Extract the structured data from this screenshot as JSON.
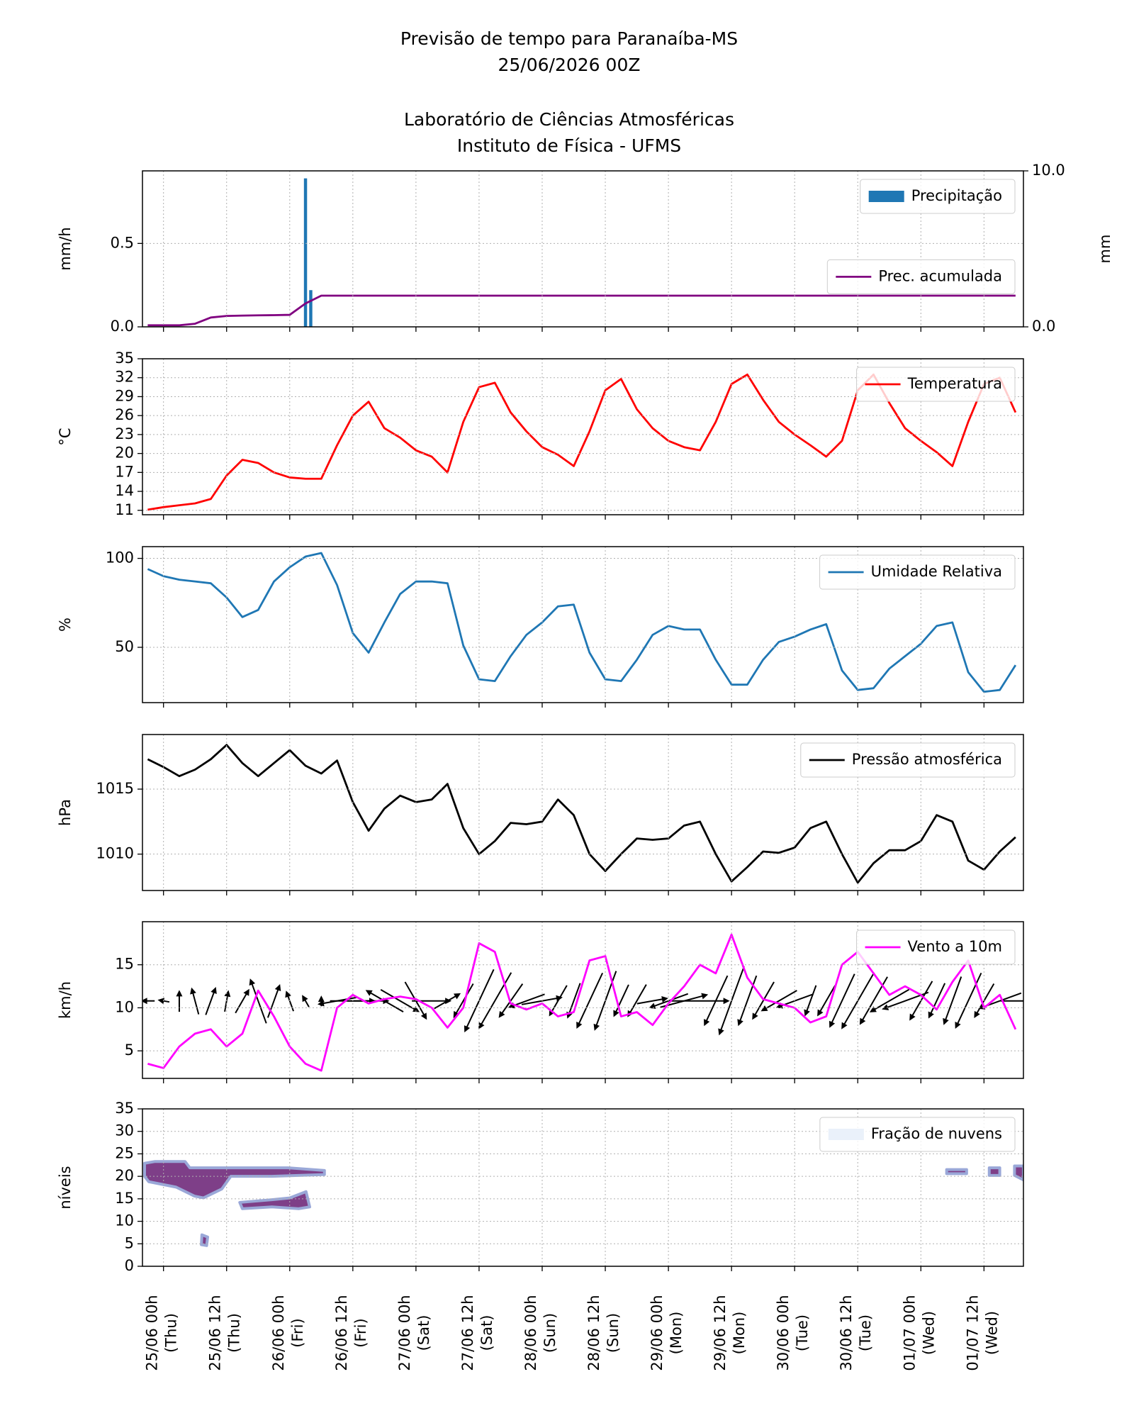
{
  "header": {
    "lines": [
      "Previsão de tempo para Paranaíba-MS",
      "25/06/2026 00Z",
      "Laboratório de Ciências Atmosféricas",
      "Instituto de Física - UFMS"
    ]
  },
  "chart_data": [
    {
      "type": "bar",
      "ylabel": "mm/h",
      "y2label": "mm",
      "grid": true,
      "legend": "upper right",
      "xlim": [
        -4,
        163.5
      ],
      "xticks": [
        0,
        12,
        24,
        36,
        48,
        60,
        72,
        84,
        96,
        108,
        120,
        132,
        144,
        156
      ],
      "ylim": [
        0,
        0.935
      ],
      "yticks": [
        {
          "value": 0,
          "label": "0.0"
        },
        {
          "value": 0.5,
          "label": "0.5"
        }
      ],
      "y2lim": [
        0,
        10
      ],
      "y2ticks": [
        {
          "value": 0,
          "label": "0.0"
        },
        {
          "value": 10,
          "label": "10.0"
        }
      ],
      "series": [
        {
          "name": "Precipitação",
          "type": "bar",
          "color": "#1f77b4",
          "x": [
            27,
            28
          ],
          "values": [
            0.89,
            0.22
          ]
        },
        {
          "name": "Prec. acumulada",
          "type": "line",
          "axis": "y2",
          "legend": "center right",
          "color": "#800080",
          "x": [
            -3,
            0,
            3,
            6,
            9,
            12,
            15,
            18,
            21,
            24,
            27,
            30,
            33,
            36,
            39,
            42,
            45,
            48,
            51,
            54,
            57,
            60,
            63,
            66,
            69,
            72,
            75,
            78,
            81,
            84,
            87,
            90,
            93,
            96,
            99,
            102,
            105,
            108,
            111,
            114,
            117,
            120,
            123,
            126,
            129,
            132,
            135,
            138,
            141,
            144,
            147,
            150,
            153,
            156,
            159,
            162
          ],
          "values": [
            0.1,
            0.1,
            0.1,
            0.2,
            0.6,
            0.7,
            0.72,
            0.74,
            0.75,
            0.77,
            1.5,
            2.0,
            2.0,
            2.0,
            2.0,
            2.0,
            2.0,
            2.0,
            2.0,
            2.0,
            2.0,
            2.0,
            2.0,
            2.0,
            2.0,
            2.0,
            2.0,
            2.0,
            2.0,
            2.0,
            2.0,
            2.0,
            2.0,
            2.0,
            2.0,
            2.0,
            2.0,
            2.0,
            2.0,
            2.0,
            2.0,
            2.0,
            2.0,
            2.0,
            2.0,
            2.0,
            2.0,
            2.0,
            2.0,
            2.0,
            2.0,
            2.0,
            2.0,
            2.0,
            2.0,
            2.0
          ]
        }
      ]
    },
    {
      "type": "line",
      "ylabel": "°C",
      "grid": true,
      "legend": "upper right",
      "xlim": [
        -4,
        163.5
      ],
      "xticks": [
        0,
        12,
        24,
        36,
        48,
        60,
        72,
        84,
        96,
        108,
        120,
        132,
        144,
        156
      ],
      "ylim": [
        10.3,
        35
      ],
      "yticks": [
        11,
        14,
        17,
        20,
        23,
        26,
        29,
        32,
        35
      ],
      "x": [
        -3,
        0,
        3,
        6,
        9,
        12,
        15,
        18,
        21,
        24,
        27,
        30,
        33,
        36,
        39,
        42,
        45,
        48,
        51,
        54,
        57,
        60,
        63,
        66,
        69,
        72,
        75,
        78,
        81,
        84,
        87,
        90,
        93,
        96,
        99,
        102,
        105,
        108,
        111,
        114,
        117,
        120,
        123,
        126,
        129,
        132,
        135,
        138,
        141,
        144,
        147,
        150,
        153,
        156,
        159,
        162
      ],
      "series": [
        {
          "name": "Temperatura",
          "color": "#ff0000",
          "values": [
            11.1,
            11.5,
            11.8,
            12.1,
            12.8,
            16.5,
            19.0,
            18.5,
            17.0,
            16.2,
            16.0,
            16.0,
            21.3,
            26.0,
            28.2,
            24.0,
            22.5,
            20.5,
            19.5,
            17.0,
            25.0,
            30.5,
            31.2,
            26.5,
            23.5,
            21.0,
            19.8,
            18.0,
            23.5,
            30.0,
            31.8,
            27.0,
            24.0,
            22.0,
            21.0,
            20.5,
            25.0,
            31.0,
            32.5,
            28.5,
            25.0,
            23.0,
            21.3,
            19.5,
            22.0,
            30.0,
            32.5,
            28.0,
            24.0,
            22.0,
            20.2,
            18.0,
            25.0,
            31.0,
            32.0,
            26.5
          ]
        }
      ]
    },
    {
      "type": "line",
      "ylabel": "%",
      "grid": true,
      "legend": "upper right",
      "xlim": [
        -4,
        163.5
      ],
      "xticks": [
        0,
        12,
        24,
        36,
        48,
        60,
        72,
        84,
        96,
        108,
        120,
        132,
        144,
        156
      ],
      "ylim": [
        18.9,
        106.6
      ],
      "yticks": [
        50,
        100
      ],
      "x": [
        -3,
        0,
        3,
        6,
        9,
        12,
        15,
        18,
        21,
        24,
        27,
        30,
        33,
        36,
        39,
        42,
        45,
        48,
        51,
        54,
        57,
        60,
        63,
        66,
        69,
        72,
        75,
        78,
        81,
        84,
        87,
        90,
        93,
        96,
        99,
        102,
        105,
        108,
        111,
        114,
        117,
        120,
        123,
        126,
        129,
        132,
        135,
        138,
        141,
        144,
        147,
        150,
        153,
        156,
        159,
        162
      ],
      "series": [
        {
          "name": "Umidade Relativa",
          "color": "#1f77b4",
          "values": [
            94,
            90,
            88,
            87,
            86,
            78,
            67,
            71,
            87,
            95,
            101,
            103,
            85,
            58,
            47,
            64,
            80,
            87,
            87,
            86,
            51,
            32,
            31,
            45,
            57,
            64,
            73,
            74,
            47,
            32,
            31,
            43,
            57,
            62,
            60,
            60,
            43,
            29,
            29,
            43,
            53,
            56,
            60,
            63,
            37,
            26,
            27,
            38,
            45,
            52,
            62,
            64,
            36,
            25,
            26,
            40
          ]
        }
      ]
    },
    {
      "type": "line",
      "ylabel": "hPa",
      "grid": true,
      "legend": "upper right",
      "xlim": [
        -4,
        163.5
      ],
      "xticks": [
        0,
        12,
        24,
        36,
        48,
        60,
        72,
        84,
        96,
        108,
        120,
        132,
        144,
        156
      ],
      "ylim": [
        1007.2,
        1019.2
      ],
      "yticks": [
        1010,
        1015
      ],
      "x": [
        -3,
        0,
        3,
        6,
        9,
        12,
        15,
        18,
        21,
        24,
        27,
        30,
        33,
        36,
        39,
        42,
        45,
        48,
        51,
        54,
        57,
        60,
        63,
        66,
        69,
        72,
        75,
        78,
        81,
        84,
        87,
        90,
        93,
        96,
        99,
        102,
        105,
        108,
        111,
        114,
        117,
        120,
        123,
        126,
        129,
        132,
        135,
        138,
        141,
        144,
        147,
        150,
        153,
        156,
        159,
        162
      ],
      "series": [
        {
          "name": "Pressão atmosférica",
          "color": "#000000",
          "values": [
            1017.3,
            1016.7,
            1016.0,
            1016.5,
            1017.3,
            1018.4,
            1017.0,
            1016.0,
            1017.0,
            1018.0,
            1016.8,
            1016.2,
            1017.2,
            1014.0,
            1011.8,
            1013.5,
            1014.5,
            1014.0,
            1014.2,
            1015.4,
            1012.0,
            1010.0,
            1011.0,
            1012.4,
            1012.3,
            1012.5,
            1014.2,
            1013.0,
            1010.0,
            1008.7,
            1010.0,
            1011.2,
            1011.1,
            1011.2,
            1012.2,
            1012.5,
            1010.0,
            1007.9,
            1009.0,
            1010.2,
            1010.1,
            1010.5,
            1012.0,
            1012.5,
            1010.0,
            1007.8,
            1009.3,
            1010.3,
            1010.3,
            1011.0,
            1013.0,
            1012.5,
            1009.5,
            1008.8,
            1010.2,
            1011.3
          ]
        }
      ]
    },
    {
      "type": "line",
      "ylabel": "km/h",
      "grid": true,
      "legend": "upper right",
      "xlim": [
        -4,
        163.5
      ],
      "xticks": [
        0,
        12,
        24,
        36,
        48,
        60,
        72,
        84,
        96,
        108,
        120,
        132,
        144,
        156
      ],
      "ylim": [
        1.8,
        20
      ],
      "yticks": [
        5,
        10,
        15
      ],
      "arrow_y": 10.8,
      "x": [
        -3,
        0,
        3,
        6,
        9,
        12,
        15,
        18,
        21,
        24,
        27,
        30,
        33,
        36,
        39,
        42,
        45,
        48,
        51,
        54,
        57,
        60,
        63,
        66,
        69,
        72,
        75,
        78,
        81,
        84,
        87,
        90,
        93,
        96,
        99,
        102,
        105,
        108,
        111,
        114,
        117,
        120,
        123,
        126,
        129,
        132,
        135,
        138,
        141,
        144,
        147,
        150,
        153,
        156,
        159,
        162
      ],
      "arrow_directions": [
        270,
        280,
        0,
        345,
        20,
        10,
        30,
        340,
        20,
        340,
        330,
        0,
        260,
        90,
        90,
        300,
        120,
        150,
        90,
        60,
        210,
        205,
        210,
        215,
        250,
        80,
        210,
        200,
        205,
        200,
        205,
        210,
        80,
        250,
        75,
        90,
        205,
        200,
        200,
        210,
        240,
        250,
        200,
        210,
        205,
        210,
        210,
        240,
        250,
        210,
        205,
        200,
        205,
        210,
        250,
        90
      ],
      "series": [
        {
          "name": "Vento a 10m",
          "color": "#ff00ff",
          "values": [
            3.5,
            3.0,
            5.5,
            7.0,
            7.5,
            5.5,
            7.0,
            12.0,
            9.0,
            5.5,
            3.5,
            2.7,
            10.0,
            11.5,
            10.5,
            11.0,
            11.3,
            11.0,
            10.0,
            7.7,
            10.0,
            17.5,
            16.5,
            10.5,
            9.8,
            10.5,
            9.0,
            9.5,
            15.5,
            16.0,
            9.0,
            9.5,
            8.0,
            10.5,
            12.5,
            15.0,
            14.0,
            18.5,
            13.5,
            11.0,
            10.5,
            10.0,
            8.3,
            9.0,
            15.0,
            16.5,
            14.0,
            11.5,
            12.5,
            11.5,
            9.8,
            13.0,
            15.5,
            10.0,
            11.5,
            7.5
          ]
        }
      ]
    },
    {
      "type": "contour",
      "ylabel": "níveis",
      "grid": true,
      "legend": "upper right",
      "xlim": [
        -4,
        163.5
      ],
      "xticks": [
        {
          "value": 0,
          "label": "25/06 00h\n(Thu)"
        },
        {
          "value": 12,
          "label": "25/06 12h\n(Thu)"
        },
        {
          "value": 24,
          "label": "26/06 00h\n(Fri)"
        },
        {
          "value": 36,
          "label": "26/06 12h\n(Fri)"
        },
        {
          "value": 48,
          "label": "27/06 00h\n(Sat)"
        },
        {
          "value": 60,
          "label": "27/06 12h\n(Sat)"
        },
        {
          "value": 72,
          "label": "28/06 00h\n(Sun)"
        },
        {
          "value": 84,
          "label": "28/06 12h\n(Sun)"
        },
        {
          "value": 96,
          "label": "29/06 00h\n(Mon)"
        },
        {
          "value": 108,
          "label": "29/06 12h\n(Mon)"
        },
        {
          "value": 120,
          "label": "30/06 00h\n(Tue)"
        },
        {
          "value": 132,
          "label": "30/06 12h\n(Tue)"
        },
        {
          "value": 144,
          "label": "01/07 00h\n(Wed)"
        },
        {
          "value": 156,
          "label": "01/07 12h\n(Wed)"
        }
      ],
      "ylim": [
        0,
        35
      ],
      "yticks": [
        0,
        5,
        10,
        15,
        20,
        25,
        30,
        35
      ],
      "series": [
        {
          "name": "Fração de nuvens",
          "color": "#7e3f88",
          "edge": "#9aa8d8",
          "legend_color": "#eaf1fa",
          "patches": [
            {
              "x": [
                -3.6,
                -1.6,
                4.1,
                5.0,
                23.7,
                30.6,
                30.6,
                20.6,
                12.8,
                11.1,
                7.6,
                5.9,
                2.4,
                -2.8,
                -3.6
              ],
              "y": [
                22.9,
                23.3,
                23.3,
                21.9,
                21.9,
                21.3,
                20.4,
                20.0,
                20.0,
                17.2,
                15.2,
                15.6,
                17.6,
                18.8,
                20.0
              ]
            },
            {
              "x": [
                14.5,
                20.6,
                24.0,
                27.1,
                27.8,
                25.7,
                20.6,
                15.0
              ],
              "y": [
                14.2,
                14.8,
                15.2,
                16.6,
                13.2,
                12.8,
                13.2,
                12.8
              ]
            },
            {
              "x": [
                7.3,
                8.4,
                8.2,
                7.2
              ],
              "y": [
                7.0,
                6.5,
                4.6,
                4.8
              ]
            },
            {
              "x": [
                148.9,
                152.7,
                152.7,
                148.9
              ],
              "y": [
                21.5,
                21.5,
                20.6,
                20.6
              ]
            },
            {
              "x": [
                157,
                159,
                159,
                157
              ],
              "y": [
                21.9,
                21.9,
                20.2,
                20.2
              ]
            },
            {
              "x": [
                161.8,
                163.5,
                163.5,
                161.8
              ],
              "y": [
                22.3,
                22.3,
                19.2,
                20.2
              ]
            }
          ]
        }
      ]
    }
  ]
}
